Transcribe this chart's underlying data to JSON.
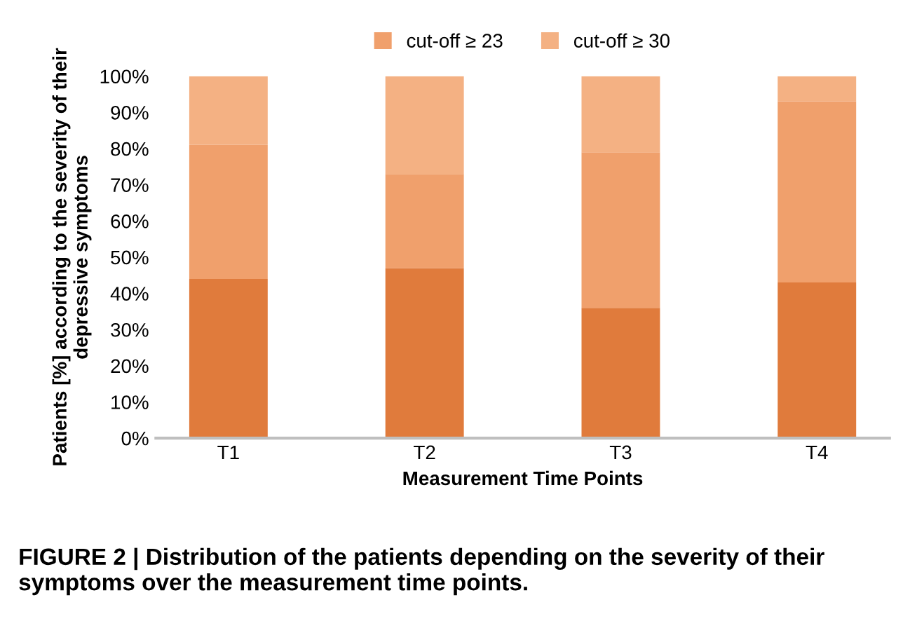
{
  "chart_data": {
    "type": "bar",
    "stacked": true,
    "xlabel": "Measurement Time Points",
    "ylabel": "Patients [%] according to the severity of their depressive symptoms",
    "categories": [
      "T1",
      "T2",
      "T3",
      "T4"
    ],
    "series": [
      {
        "color": "#e07b3c",
        "values": [
          44,
          47,
          36,
          43
        ]
      },
      {
        "name": "cut-off ≥ 23",
        "color": "#f0a06c",
        "values": [
          37,
          26,
          43,
          50
        ]
      },
      {
        "name": "cut-off ≥ 30",
        "color": "#f4b183",
        "values": [
          19,
          27,
          21,
          7
        ]
      }
    ],
    "ylim": [
      0,
      100
    ],
    "yticks": [
      {
        "value": 0,
        "label": "0%"
      },
      {
        "value": 10,
        "label": "10%"
      },
      {
        "value": 20,
        "label": "20%"
      },
      {
        "value": 30,
        "label": "30%"
      },
      {
        "value": 40,
        "label": "40%"
      },
      {
        "value": 50,
        "label": "50%"
      },
      {
        "value": 60,
        "label": "60%"
      },
      {
        "value": 70,
        "label": "70%"
      },
      {
        "value": 80,
        "label": "80%"
      },
      {
        "value": 90,
        "label": "90%"
      },
      {
        "value": 100,
        "label": "100%"
      }
    ],
    "legend": "top",
    "grid": false,
    "annotations": [
      "FIGURE 2 | Distribution of the patients depending on the severity of their symptoms over the measurement time points."
    ]
  }
}
